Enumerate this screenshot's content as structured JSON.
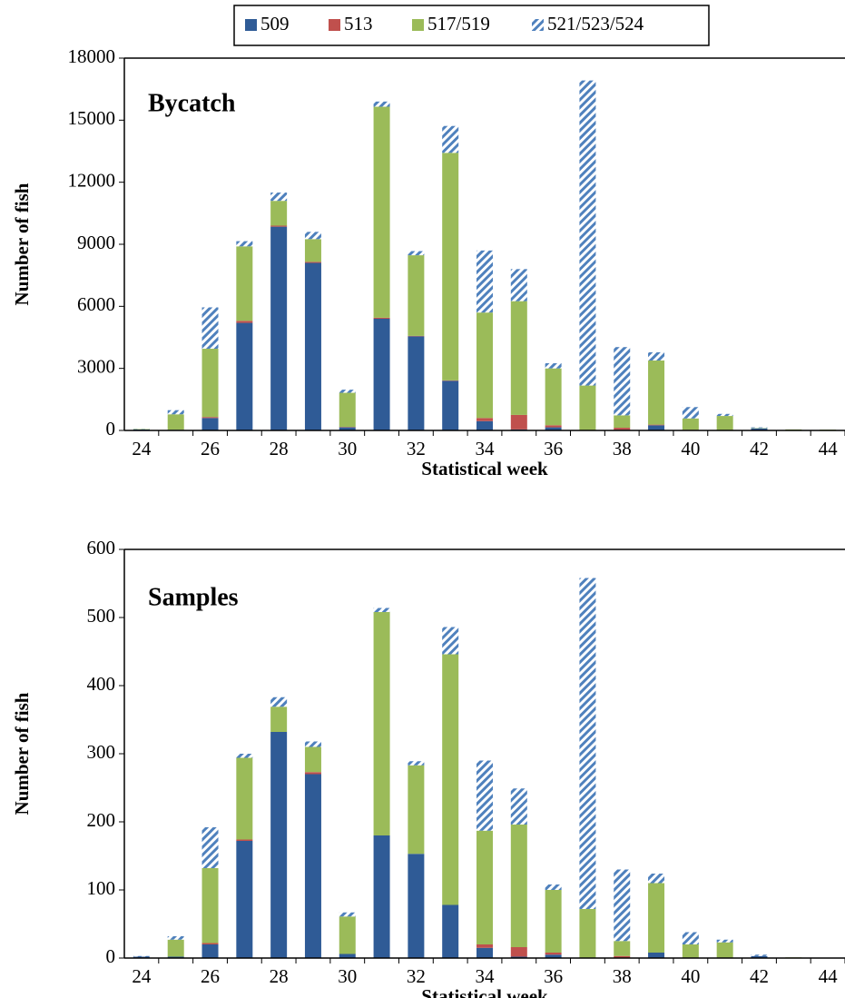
{
  "chart_data": [
    {
      "type": "bar",
      "stacked": true,
      "title": "Bycatch",
      "x_label": "Statistical week",
      "y_label": "Number of fish",
      "categories": [
        24,
        null,
        26,
        null,
        28,
        null,
        30,
        null,
        32,
        null,
        34,
        null,
        36,
        null,
        38,
        null,
        40,
        null,
        42,
        null,
        44
      ],
      "ylim": [
        0,
        18000
      ],
      "yticks": [
        0,
        3000,
        6000,
        9000,
        12000,
        15000,
        18000
      ],
      "series": [
        {
          "name": "509",
          "color": "#2f5b96",
          "values": [
            50,
            30,
            600,
            5200,
            9850,
            8100,
            150,
            5400,
            4550,
            2400,
            450,
            50,
            150,
            0,
            30,
            250,
            20,
            0,
            100,
            0,
            20
          ]
        },
        {
          "name": "513",
          "color": "#c0504d",
          "values": [
            0,
            0,
            50,
            100,
            50,
            50,
            20,
            50,
            20,
            20,
            150,
            700,
            100,
            20,
            100,
            30,
            10,
            0,
            0,
            0,
            0
          ]
        },
        {
          "name": "517/519",
          "color": "#9bbb59",
          "values": [
            20,
            750,
            3300,
            3600,
            1200,
            1100,
            1650,
            10200,
            3900,
            11000,
            5100,
            5500,
            2750,
            2150,
            600,
            3100,
            550,
            700,
            20,
            50,
            20
          ]
        },
        {
          "name": "521/523/524",
          "color": "#4f81bd",
          "hatch": true,
          "values": [
            10,
            200,
            2000,
            250,
            400,
            350,
            150,
            250,
            200,
            1300,
            3000,
            1550,
            250,
            14750,
            3300,
            400,
            550,
            100,
            30,
            0,
            0
          ]
        }
      ]
    },
    {
      "type": "bar",
      "stacked": true,
      "title": "Samples",
      "x_label": "Statistical week",
      "y_label": "Number of fish",
      "categories": [
        24,
        null,
        26,
        null,
        28,
        null,
        30,
        null,
        32,
        null,
        34,
        null,
        36,
        null,
        38,
        null,
        40,
        null,
        42,
        null,
        44
      ],
      "ylim": [
        0,
        600
      ],
      "yticks": [
        0,
        100,
        200,
        300,
        400,
        500,
        600
      ],
      "series": [
        {
          "color": "#2f5b96",
          "values": [
            2,
            2,
            20,
            172,
            332,
            270,
            6,
            180,
            153,
            78,
            15,
            2,
            5,
            0,
            0,
            8,
            0,
            0,
            3,
            0,
            0
          ]
        },
        {
          "color": "#c0504d",
          "values": [
            0,
            0,
            2,
            2,
            0,
            3,
            0,
            0,
            0,
            0,
            5,
            14,
            3,
            0,
            3,
            0,
            0,
            0,
            0,
            0,
            0
          ]
        },
        {
          "color": "#9bbb59",
          "values": [
            0,
            25,
            110,
            120,
            37,
            37,
            55,
            328,
            130,
            368,
            167,
            180,
            92,
            72,
            22,
            102,
            20,
            23,
            0,
            1,
            0
          ]
        },
        {
          "color": "#4f81bd",
          "hatch": true,
          "values": [
            1,
            5,
            60,
            6,
            14,
            8,
            6,
            6,
            6,
            40,
            103,
            53,
            8,
            486,
            105,
            14,
            18,
            4,
            2,
            0,
            0
          ]
        }
      ]
    }
  ]
}
